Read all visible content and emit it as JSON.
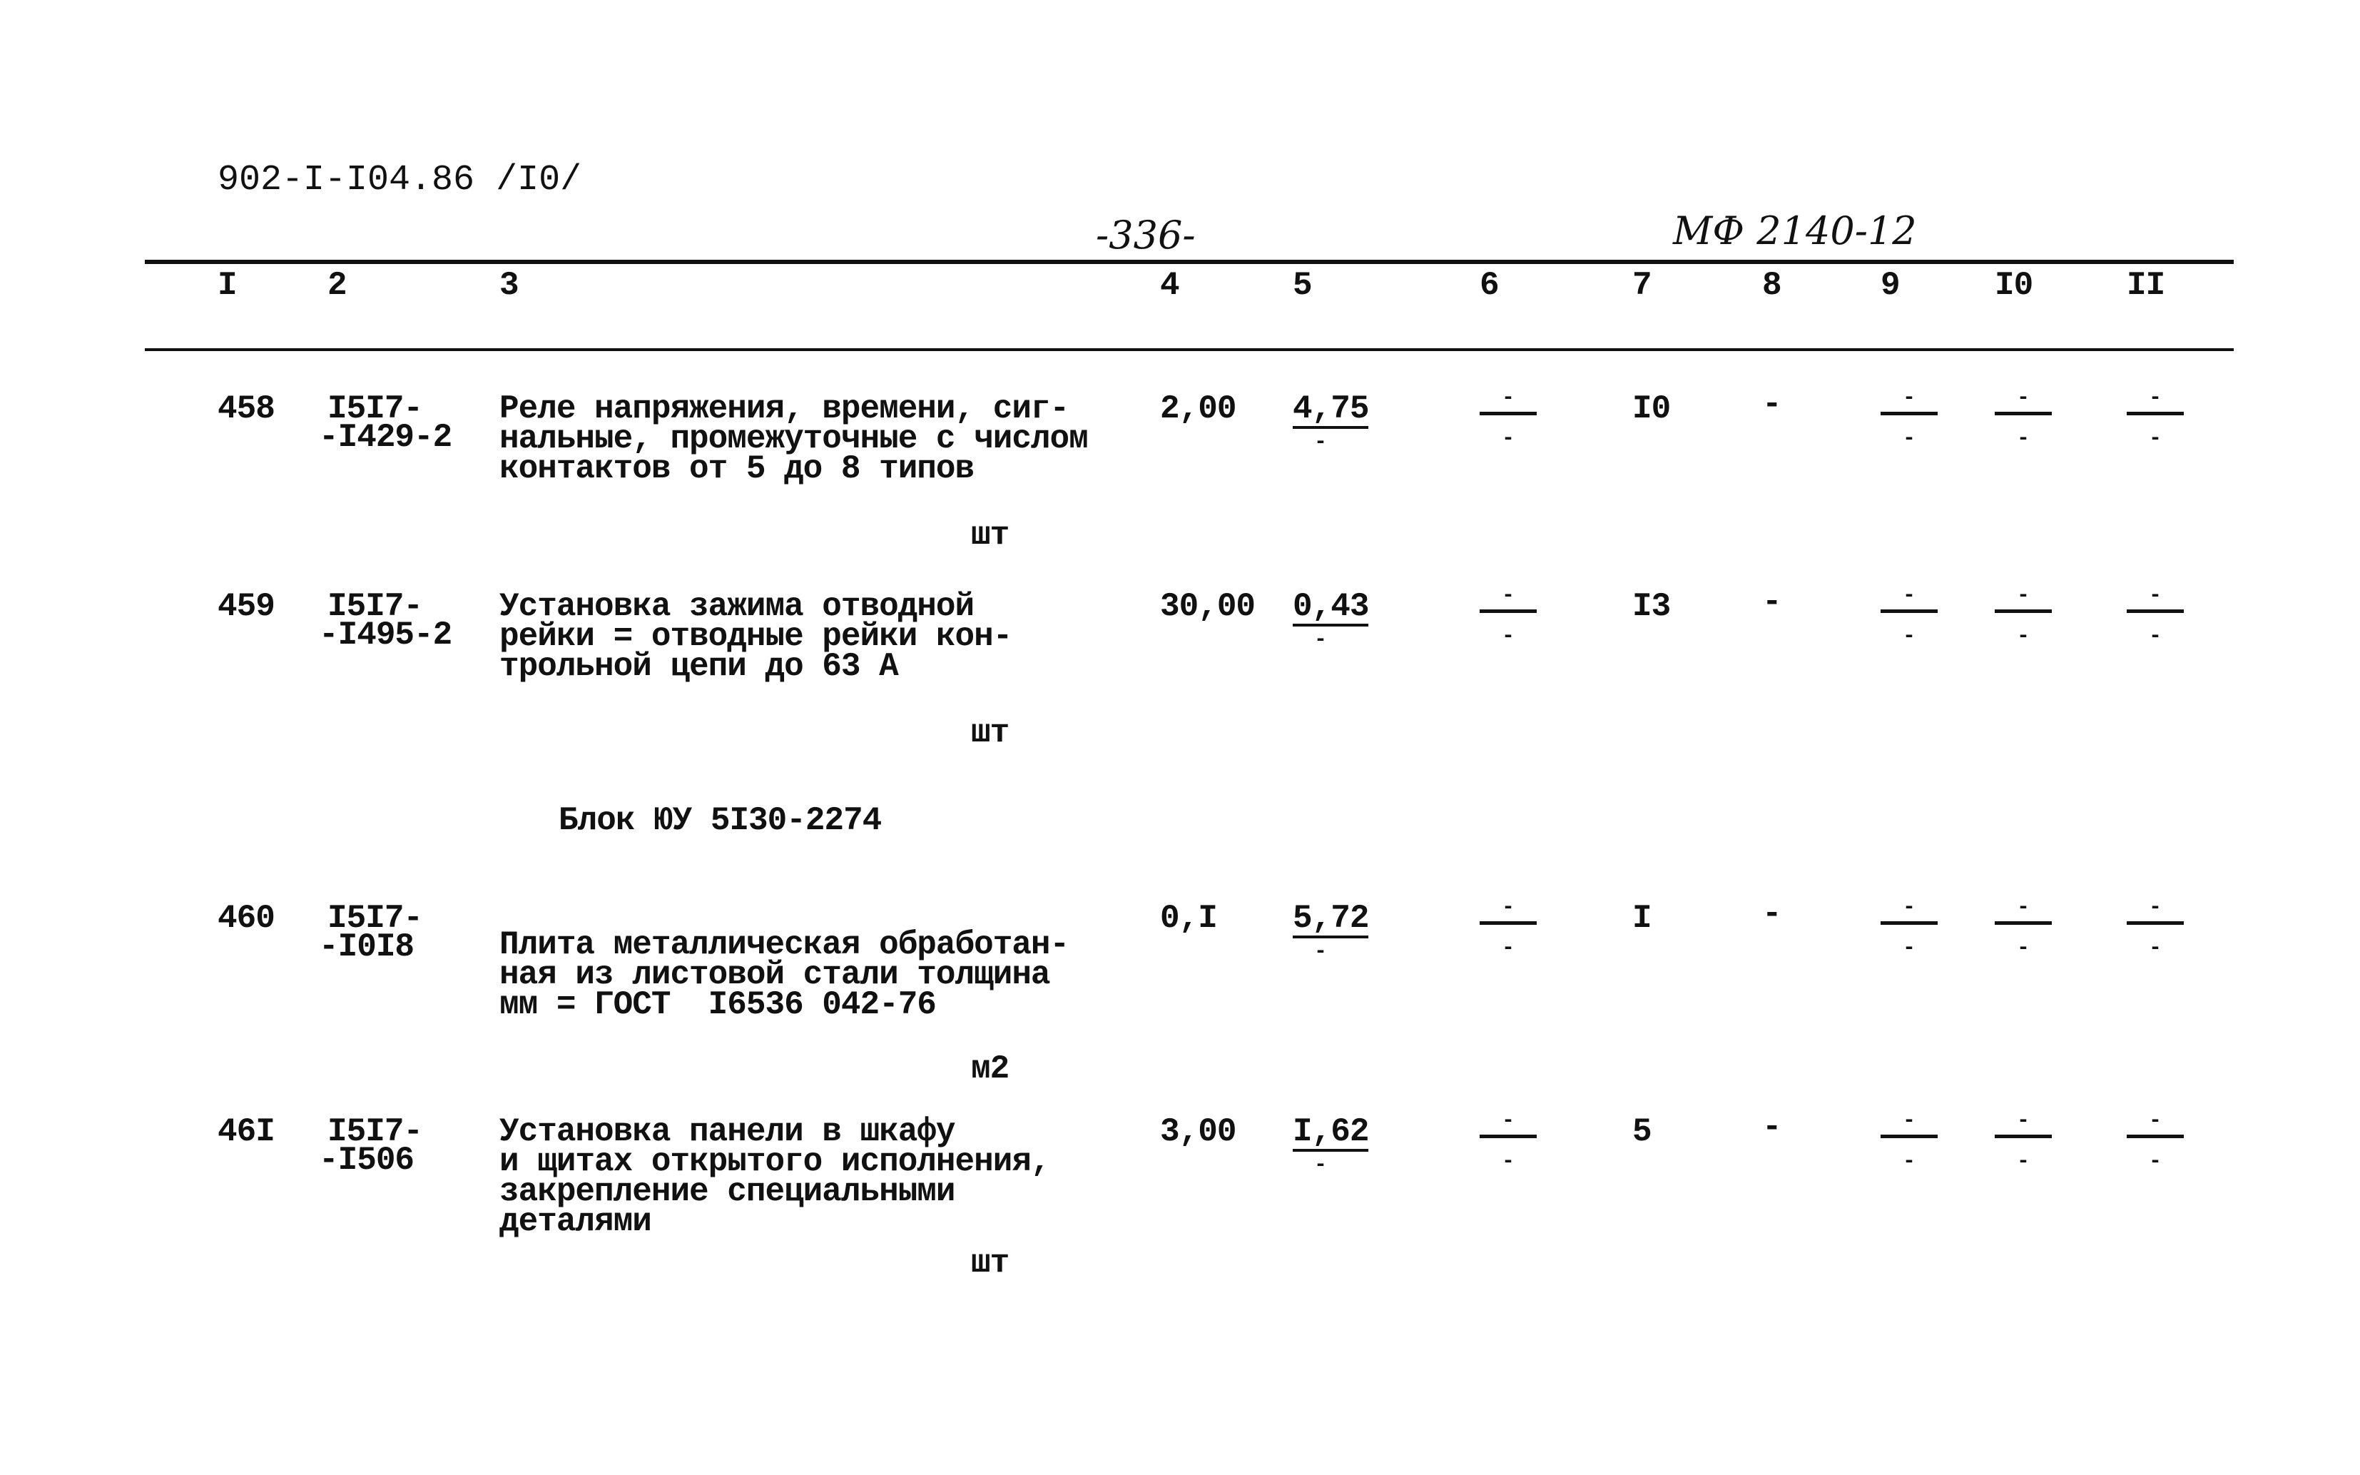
{
  "header": {
    "doc_code": "902-I-I04.86 /I0/",
    "page_number": "-336-",
    "stamp": "МФ 2140-12"
  },
  "columns": [
    "I",
    "2",
    "3",
    "4",
    "5",
    "6",
    "7",
    "8",
    "9",
    "I0",
    "II"
  ],
  "rows": [
    {
      "num": "458",
      "code": [
        "I5I7-",
        "-I429-2"
      ],
      "desc": [
        "Реле напряжения, времени, сиг-",
        "нальные, промежуточные с числом",
        "контактов от 5 до 8 типов"
      ],
      "unit": "шт",
      "c4": "2,00",
      "c5": "4,75",
      "c5_sub": "-",
      "c6": [
        "-",
        "-"
      ],
      "c7": "I0",
      "c8": "-",
      "c9": [
        "-",
        "-"
      ],
      "c10": [
        "-",
        "-"
      ],
      "c11": [
        "-",
        "-"
      ]
    },
    {
      "num": "459",
      "code": [
        "I5I7-",
        "-I495-2"
      ],
      "desc": [
        "Установка зажима отводной",
        "рейки = отводные рейки кон-",
        "трольной цепи до 63 А"
      ],
      "unit": "шт",
      "c4": "30,00",
      "c5": "0,43",
      "c5_sub": "-",
      "c6": [
        "-",
        "-"
      ],
      "c7": "I3",
      "c8": "-",
      "c9": [
        "-",
        "-"
      ],
      "c10": [
        "-",
        "-"
      ],
      "c11": [
        "-",
        "-"
      ]
    },
    {
      "num": "460",
      "code": [
        "I5I7-",
        "-I0I8"
      ],
      "desc": [
        "Плита металлическая обработан-",
        "ная из листовой стали толщина",
        "мм = ГОСТ  I6536 042-76"
      ],
      "unit": "м2",
      "c4": "0,I",
      "c5": "5,72",
      "c5_sub": "-",
      "c6": [
        "-",
        "-"
      ],
      "c7": "I",
      "c8": "-",
      "c9": [
        "-",
        "-"
      ],
      "c10": [
        "-",
        "-"
      ],
      "c11": [
        "-",
        "-"
      ]
    },
    {
      "num": "46I",
      "code": [
        "I5I7-",
        "-I506"
      ],
      "desc": [
        "Установка панели в шкафу",
        "и щитах открытого исполнения,",
        "закрепление специальными",
        "деталями"
      ],
      "unit": "шт",
      "c4": "3,00",
      "c5": "I,62",
      "c5_sub": "-",
      "c6": [
        "-",
        "-"
      ],
      "c7": "5",
      "c8": "-",
      "c9": [
        "-",
        "-"
      ],
      "c10": [
        "-",
        "-"
      ],
      "c11": [
        "-",
        "-"
      ]
    }
  ],
  "block_title": "Блок ЮУ 5I30-2274"
}
